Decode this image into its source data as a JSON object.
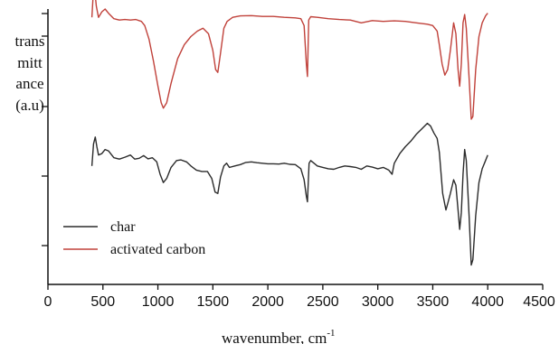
{
  "chart_data": {
    "type": "line",
    "xlabel": "wavenumber, cm",
    "xlabel_sup": "-1",
    "ylabel_lines": [
      "trans",
      "mitt",
      "ance",
      "(a.u)"
    ],
    "xlim": [
      0,
      4500
    ],
    "x_ticks": [
      0,
      500,
      1000,
      1500,
      2000,
      2500,
      3000,
      3500,
      4000,
      4500
    ],
    "ylim": [
      0,
      1
    ],
    "grid": false,
    "legend_position": "bottom-left",
    "series": [
      {
        "name": "char",
        "color": "#2b2b2b",
        "points": [
          [
            400,
            0.43
          ],
          [
            415,
            0.51
          ],
          [
            430,
            0.535
          ],
          [
            445,
            0.5
          ],
          [
            460,
            0.47
          ],
          [
            490,
            0.475
          ],
          [
            520,
            0.49
          ],
          [
            550,
            0.485
          ],
          [
            600,
            0.46
          ],
          [
            650,
            0.455
          ],
          [
            700,
            0.462
          ],
          [
            750,
            0.47
          ],
          [
            790,
            0.455
          ],
          [
            830,
            0.458
          ],
          [
            870,
            0.468
          ],
          [
            910,
            0.456
          ],
          [
            950,
            0.46
          ],
          [
            990,
            0.445
          ],
          [
            1020,
            0.4
          ],
          [
            1050,
            0.37
          ],
          [
            1080,
            0.385
          ],
          [
            1120,
            0.425
          ],
          [
            1170,
            0.45
          ],
          [
            1210,
            0.452
          ],
          [
            1260,
            0.445
          ],
          [
            1300,
            0.43
          ],
          [
            1350,
            0.415
          ],
          [
            1400,
            0.41
          ],
          [
            1450,
            0.41
          ],
          [
            1490,
            0.385
          ],
          [
            1520,
            0.335
          ],
          [
            1545,
            0.33
          ],
          [
            1570,
            0.39
          ],
          [
            1600,
            0.43
          ],
          [
            1625,
            0.44
          ],
          [
            1650,
            0.425
          ],
          [
            1700,
            0.43
          ],
          [
            1750,
            0.435
          ],
          [
            1800,
            0.443
          ],
          [
            1850,
            0.445
          ],
          [
            1900,
            0.442
          ],
          [
            1950,
            0.44
          ],
          [
            2000,
            0.438
          ],
          [
            2050,
            0.438
          ],
          [
            2100,
            0.437
          ],
          [
            2150,
            0.44
          ],
          [
            2200,
            0.436
          ],
          [
            2250,
            0.435
          ],
          [
            2300,
            0.42
          ],
          [
            2330,
            0.38
          ],
          [
            2350,
            0.32
          ],
          [
            2360,
            0.3
          ],
          [
            2375,
            0.44
          ],
          [
            2390,
            0.45
          ],
          [
            2420,
            0.44
          ],
          [
            2450,
            0.43
          ],
          [
            2500,
            0.425
          ],
          [
            2550,
            0.42
          ],
          [
            2600,
            0.418
          ],
          [
            2650,
            0.425
          ],
          [
            2700,
            0.43
          ],
          [
            2750,
            0.428
          ],
          [
            2800,
            0.425
          ],
          [
            2850,
            0.418
          ],
          [
            2900,
            0.43
          ],
          [
            2950,
            0.426
          ],
          [
            3000,
            0.42
          ],
          [
            3050,
            0.425
          ],
          [
            3100,
            0.415
          ],
          [
            3130,
            0.4
          ],
          [
            3150,
            0.44
          ],
          [
            3200,
            0.475
          ],
          [
            3250,
            0.5
          ],
          [
            3300,
            0.52
          ],
          [
            3350,
            0.545
          ],
          [
            3400,
            0.565
          ],
          [
            3450,
            0.585
          ],
          [
            3480,
            0.575
          ],
          [
            3510,
            0.55
          ],
          [
            3540,
            0.53
          ],
          [
            3560,
            0.48
          ],
          [
            3590,
            0.33
          ],
          [
            3620,
            0.27
          ],
          [
            3640,
            0.3
          ],
          [
            3660,
            0.33
          ],
          [
            3690,
            0.38
          ],
          [
            3710,
            0.36
          ],
          [
            3730,
            0.27
          ],
          [
            3745,
            0.2
          ],
          [
            3760,
            0.26
          ],
          [
            3775,
            0.4
          ],
          [
            3790,
            0.49
          ],
          [
            3805,
            0.45
          ],
          [
            3830,
            0.25
          ],
          [
            3850,
            0.07
          ],
          [
            3865,
            0.09
          ],
          [
            3890,
            0.25
          ],
          [
            3920,
            0.37
          ],
          [
            3950,
            0.42
          ],
          [
            3980,
            0.45
          ],
          [
            4000,
            0.47
          ]
        ]
      },
      {
        "name": "activated carbon",
        "color": "#c0413a",
        "points": [
          [
            400,
            0.97
          ],
          [
            410,
            1.04
          ],
          [
            425,
            1.07
          ],
          [
            440,
            1.01
          ],
          [
            460,
            0.97
          ],
          [
            490,
            0.99
          ],
          [
            520,
            1.0
          ],
          [
            550,
            0.985
          ],
          [
            600,
            0.965
          ],
          [
            650,
            0.96
          ],
          [
            700,
            0.962
          ],
          [
            750,
            0.96
          ],
          [
            800,
            0.962
          ],
          [
            850,
            0.955
          ],
          [
            880,
            0.94
          ],
          [
            920,
            0.89
          ],
          [
            960,
            0.81
          ],
          [
            1000,
            0.72
          ],
          [
            1030,
            0.66
          ],
          [
            1050,
            0.64
          ],
          [
            1080,
            0.66
          ],
          [
            1120,
            0.73
          ],
          [
            1180,
            0.82
          ],
          [
            1240,
            0.87
          ],
          [
            1300,
            0.9
          ],
          [
            1360,
            0.92
          ],
          [
            1410,
            0.93
          ],
          [
            1460,
            0.91
          ],
          [
            1500,
            0.85
          ],
          [
            1525,
            0.78
          ],
          [
            1545,
            0.77
          ],
          [
            1570,
            0.84
          ],
          [
            1600,
            0.93
          ],
          [
            1630,
            0.955
          ],
          [
            1680,
            0.97
          ],
          [
            1750,
            0.975
          ],
          [
            1850,
            0.976
          ],
          [
            1950,
            0.973
          ],
          [
            2050,
            0.973
          ],
          [
            2150,
            0.97
          ],
          [
            2250,
            0.968
          ],
          [
            2300,
            0.965
          ],
          [
            2330,
            0.94
          ],
          [
            2350,
            0.8
          ],
          [
            2360,
            0.755
          ],
          [
            2372,
            0.96
          ],
          [
            2390,
            0.972
          ],
          [
            2450,
            0.97
          ],
          [
            2550,
            0.965
          ],
          [
            2650,
            0.962
          ],
          [
            2750,
            0.96
          ],
          [
            2850,
            0.95
          ],
          [
            2950,
            0.958
          ],
          [
            3050,
            0.955
          ],
          [
            3150,
            0.957
          ],
          [
            3250,
            0.955
          ],
          [
            3350,
            0.95
          ],
          [
            3450,
            0.945
          ],
          [
            3500,
            0.94
          ],
          [
            3540,
            0.92
          ],
          [
            3560,
            0.87
          ],
          [
            3585,
            0.8
          ],
          [
            3610,
            0.76
          ],
          [
            3635,
            0.78
          ],
          [
            3660,
            0.85
          ],
          [
            3690,
            0.95
          ],
          [
            3710,
            0.91
          ],
          [
            3730,
            0.78
          ],
          [
            3745,
            0.72
          ],
          [
            3760,
            0.8
          ],
          [
            3775,
            0.95
          ],
          [
            3790,
            0.98
          ],
          [
            3805,
            0.93
          ],
          [
            3830,
            0.75
          ],
          [
            3850,
            0.6
          ],
          [
            3865,
            0.61
          ],
          [
            3890,
            0.78
          ],
          [
            3920,
            0.9
          ],
          [
            3950,
            0.95
          ],
          [
            3980,
            0.975
          ],
          [
            4000,
            0.985
          ]
        ]
      }
    ]
  }
}
